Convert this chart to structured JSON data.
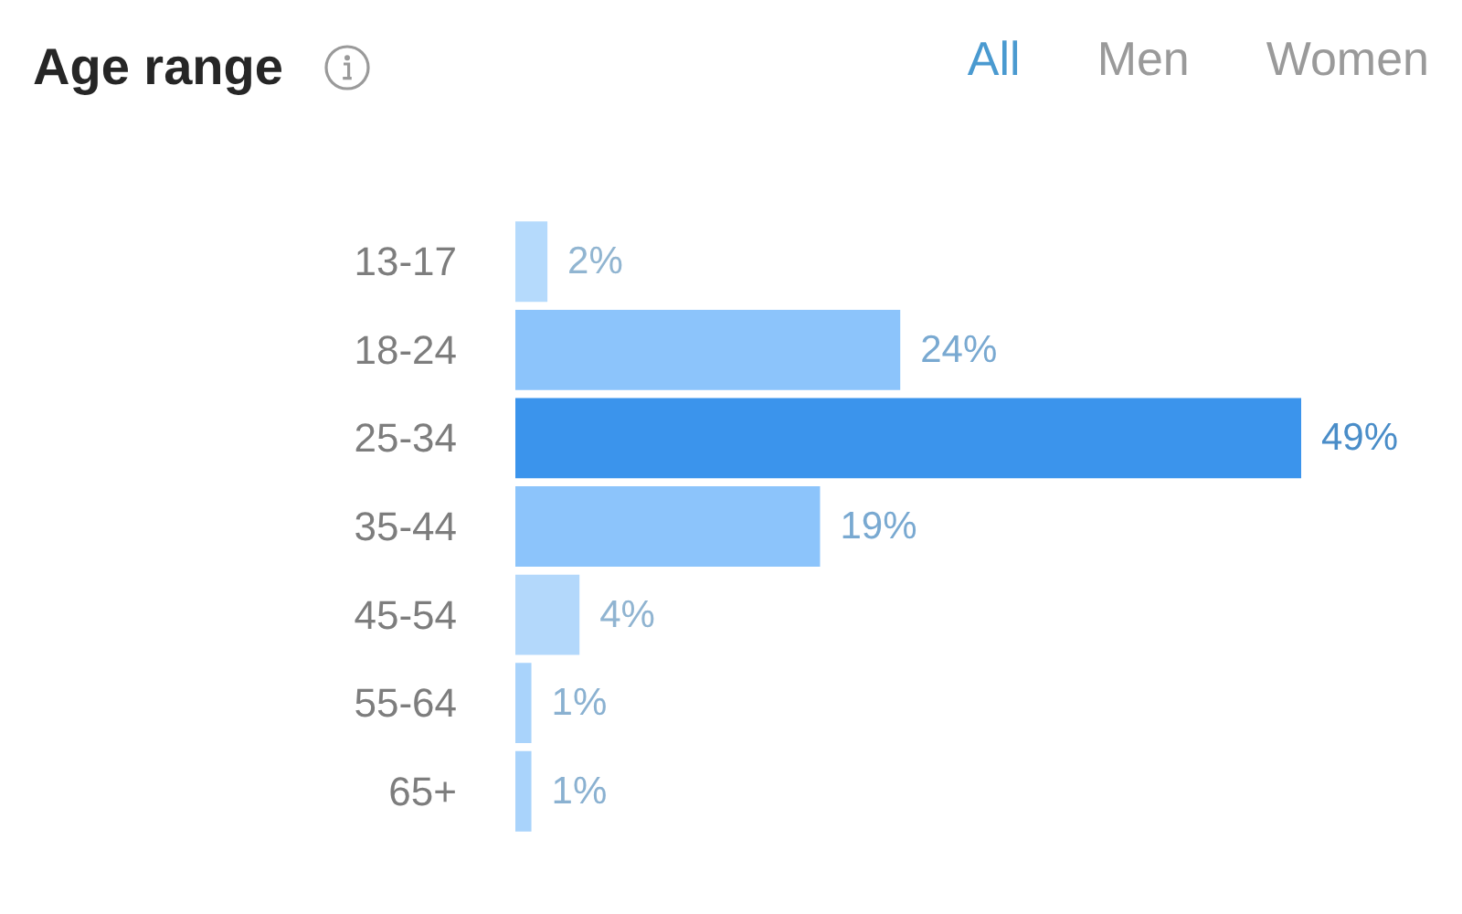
{
  "chart_data": {
    "type": "bar",
    "orientation": "horizontal",
    "title": "Age range",
    "annotations": [
      "All",
      "Men",
      "Women"
    ],
    "categories": [
      "13-17",
      "18-24",
      "25-34",
      "35-44",
      "45-54",
      "55-64",
      "65+"
    ],
    "values": [
      2,
      24,
      49,
      19,
      4,
      1,
      1
    ],
    "colors": [
      "#b5dafc",
      "#8cc4fb",
      "#3b94ec",
      "#8cc4fb",
      "#b3d8fb",
      "#a9d3fb",
      "#a9d3fb"
    ],
    "value_labels": [
      "2%",
      "24%",
      "49%",
      "19%",
      "4%",
      "1%",
      "1%"
    ],
    "tick_labels": "y"
  }
}
